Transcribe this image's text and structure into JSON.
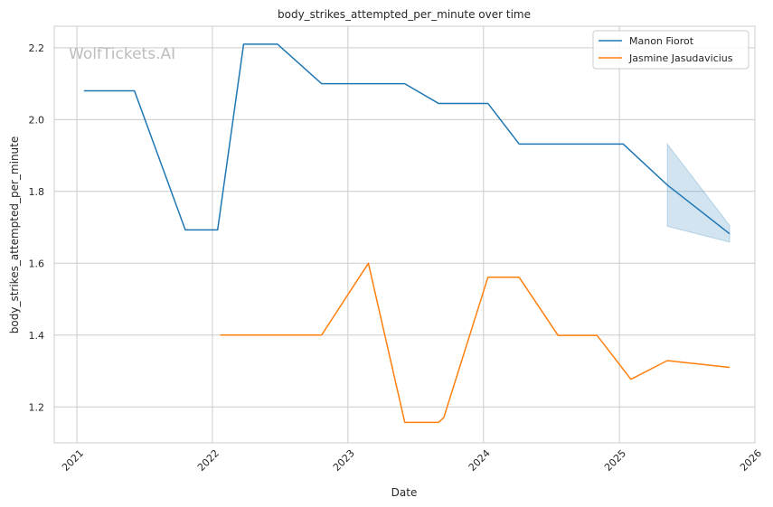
{
  "watermark": "WolfTickets.AI",
  "chart_data": {
    "type": "line",
    "title": "body_strikes_attempted_per_minute over time",
    "xlabel": "Date",
    "ylabel": "body_strikes_attempted_per_minute",
    "xlim": [
      "2020-11-01",
      "2026-01-01"
    ],
    "ylim": [
      1.1,
      2.26
    ],
    "x_ticks": [
      "2021",
      "2022",
      "2023",
      "2024",
      "2025",
      "2026"
    ],
    "y_ticks": [
      "1.2",
      "1.4",
      "1.6",
      "1.8",
      "2.0",
      "2.2"
    ],
    "grid": true,
    "legend_position": "top-right",
    "series": [
      {
        "name": "Manon Fiorot",
        "color": "#1f77b4",
        "points": [
          {
            "x": "2021-01-20",
            "y": 2.08
          },
          {
            "x": "2021-06-05",
            "y": 2.08
          },
          {
            "x": "2021-10-20",
            "y": 1.693
          },
          {
            "x": "2022-01-15",
            "y": 1.693
          },
          {
            "x": "2022-03-26",
            "y": 2.21
          },
          {
            "x": "2022-06-25",
            "y": 2.21
          },
          {
            "x": "2022-10-22",
            "y": 2.1
          },
          {
            "x": "2023-06-03",
            "y": 2.1
          },
          {
            "x": "2023-09-02",
            "y": 2.045
          },
          {
            "x": "2024-01-13",
            "y": 2.045
          },
          {
            "x": "2024-04-06",
            "y": 1.932
          },
          {
            "x": "2025-01-11",
            "y": 1.932
          },
          {
            "x": "2025-05-10",
            "y": 1.818
          },
          {
            "x": "2025-10-25",
            "y": 1.682
          }
        ],
        "confidence_band": [
          {
            "x": "2025-05-10",
            "lower": 1.703,
            "upper": 1.932
          },
          {
            "x": "2025-10-25",
            "lower": 1.659,
            "upper": 1.705
          }
        ]
      },
      {
        "name": "Jasmine Jasudavicius",
        "color": "#ff7f0e",
        "points": [
          {
            "x": "2022-01-22",
            "y": 1.4
          },
          {
            "x": "2022-10-22",
            "y": 1.4
          },
          {
            "x": "2023-02-25",
            "y": 1.6
          },
          {
            "x": "2023-06-03",
            "y": 1.157
          },
          {
            "x": "2023-09-02",
            "y": 1.157
          },
          {
            "x": "2023-09-16",
            "y": 1.17
          },
          {
            "x": "2024-01-13",
            "y": 1.561
          },
          {
            "x": "2024-04-06",
            "y": 1.561
          },
          {
            "x": "2024-07-20",
            "y": 1.399
          },
          {
            "x": "2024-11-02",
            "y": 1.399
          },
          {
            "x": "2025-02-01",
            "y": 1.277
          },
          {
            "x": "2025-05-10",
            "y": 1.329
          },
          {
            "x": "2025-10-25",
            "y": 1.31
          }
        ]
      }
    ]
  }
}
